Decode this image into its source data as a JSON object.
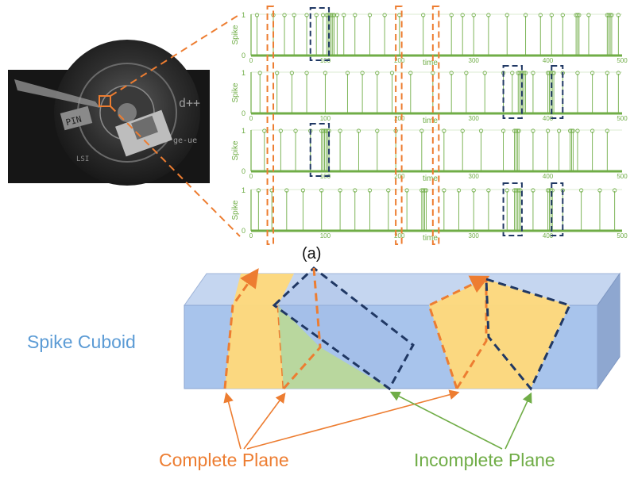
{
  "figure": {
    "subfigure_label": "(a)",
    "cuboid_label": "Spike Cuboid",
    "complete_plane_label": "Complete Plane",
    "incomplete_plane_label": "Incomplete Plane"
  },
  "photo": {
    "labels": [
      "PIN",
      "d++",
      "ge-ue",
      "LSI"
    ]
  },
  "spike_plots": {
    "ylabel": "Spike",
    "xlabel": "time",
    "y_ticks": [
      "0",
      "1"
    ],
    "x_ticks": [
      "0",
      "100",
      "200",
      "300",
      "400",
      "500"
    ],
    "x_range": [
      0,
      500
    ],
    "rows": [
      {
        "spike_times": [
          8,
          30,
          45,
          58,
          75,
          88,
          97,
          102,
          104,
          106,
          108,
          110,
          112,
          116,
          125,
          140,
          160,
          180,
          200,
          232,
          270,
          285,
          300,
          320,
          345,
          370,
          390,
          405,
          420,
          438,
          440,
          442,
          455,
          480,
          482,
          484,
          486,
          495
        ]
      },
      {
        "spike_times": [
          12,
          35,
          55,
          75,
          100,
          130,
          150,
          170,
          190,
          215,
          245,
          270,
          290,
          315,
          340,
          352,
          360,
          362,
          364,
          366,
          368,
          370,
          380,
          400,
          402,
          404,
          406,
          408,
          420,
          440,
          460,
          480,
          495
        ]
      },
      {
        "spike_times": [
          18,
          40,
          60,
          80,
          95,
          97,
          99,
          101,
          103,
          105,
          120,
          145,
          170,
          195,
          230,
          260,
          285,
          310,
          340,
          355,
          357,
          359,
          361,
          380,
          400,
          415,
          430,
          432,
          434,
          440,
          460,
          480
        ]
      },
      {
        "spike_times": [
          10,
          28,
          48,
          70,
          95,
          120,
          140,
          160,
          185,
          210,
          230,
          232,
          234,
          236,
          260,
          280,
          300,
          320,
          345,
          355,
          357,
          359,
          361,
          363,
          380,
          400,
          402,
          404,
          406,
          420,
          445,
          470,
          490
        ]
      }
    ],
    "highlight_bands": {
      "orange": [
        [
          22,
          30
        ],
        [
          195,
          203
        ],
        [
          245,
          253
        ]
      ],
      "blue": [
        [
          [
            80,
            105
          ]
        ],
        [
          [
            340,
            365
          ],
          [
            405,
            420
          ]
        ],
        [
          [
            80,
            105
          ]
        ],
        [
          [
            340,
            365
          ],
          [
            405,
            420
          ]
        ]
      ]
    }
  },
  "colors": {
    "spike_green": "#70ad47",
    "orange": "#ed7d31",
    "blue_dash": "#203864",
    "cuboid_front": "#a8c4ec",
    "cuboid_top": "#c5d6f0",
    "cuboid_right": "#8ea7d0",
    "plane_yellow": "#ffd97a",
    "plane_green": "#b9d89a",
    "label_blue": "#5b9bd5"
  }
}
